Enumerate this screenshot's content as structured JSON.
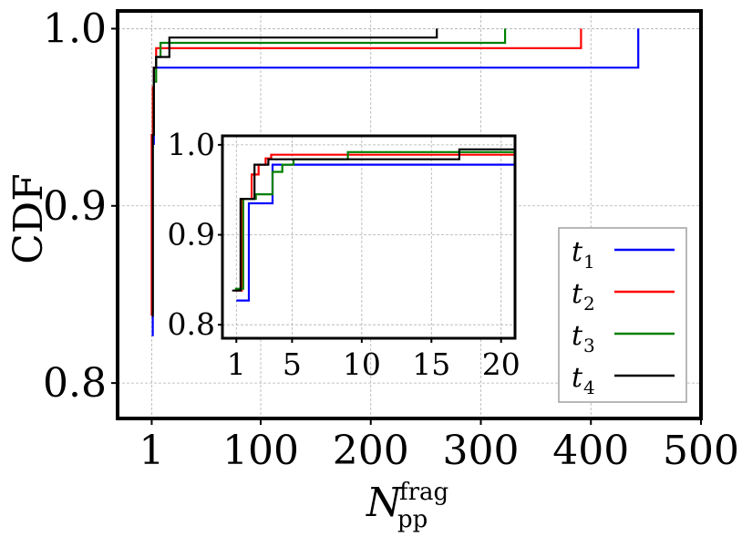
{
  "chart_data": [
    {
      "type": "line",
      "role": "main",
      "xlabel_main": "N",
      "xlabel_sub": "pp",
      "xlabel_sup": "frag",
      "ylabel": "CDF",
      "xlim": [
        -30,
        500
      ],
      "ylim": [
        0.78,
        1.01
      ],
      "x_ticks": [
        1,
        100,
        200,
        300,
        400,
        500
      ],
      "x_tick_labels": [
        "1",
        "100",
        "200",
        "300",
        "400",
        "500"
      ],
      "y_ticks": [
        0.8,
        0.9,
        1.0
      ],
      "y_tick_labels": [
        "0.8",
        "0.9",
        "1.0"
      ],
      "grid": true,
      "legend_position": "bottom-right",
      "series": [
        {
          "name": "t",
          "sub": "1",
          "color": "#0000ff",
          "points": [
            [
              1,
              0.827
            ],
            [
              2,
              0.827
            ],
            [
              2,
              0.935
            ],
            [
              3,
              0.935
            ],
            [
              3,
              0.978
            ],
            [
              443,
              0.978
            ],
            [
              443,
              1.0
            ]
          ]
        },
        {
          "name": "t",
          "sub": "2",
          "color": "#ff0000",
          "points": [
            [
              1,
              0.838
            ],
            [
              1,
              0.838
            ],
            [
              1,
              0.94
            ],
            [
              2,
              0.94
            ],
            [
              2,
              0.967
            ],
            [
              3,
              0.967
            ],
            [
              3,
              0.978
            ],
            [
              5,
              0.978
            ],
            [
              5,
              0.989
            ],
            [
              391,
              0.989
            ],
            [
              391,
              1.0
            ]
          ]
        },
        {
          "name": "t",
          "sub": "3",
          "color": "#008000",
          "points": [
            [
              1,
              0.84
            ],
            [
              2,
              0.84
            ],
            [
              2,
              0.94
            ],
            [
              3,
              0.94
            ],
            [
              3,
              0.97
            ],
            [
              5,
              0.97
            ],
            [
              5,
              0.984
            ],
            [
              9,
              0.984
            ],
            [
              9,
              0.992
            ],
            [
              322,
              0.992
            ],
            [
              322,
              1.0
            ]
          ]
        },
        {
          "name": "t",
          "sub": "4",
          "color": "#000000",
          "points": [
            [
              1,
              0.838
            ],
            [
              2,
              0.838
            ],
            [
              2,
              0.94
            ],
            [
              3,
              0.94
            ],
            [
              3,
              0.978
            ],
            [
              5,
              0.978
            ],
            [
              5,
              0.984
            ],
            [
              17,
              0.984
            ],
            [
              17,
              0.995
            ],
            [
              260,
              0.995
            ],
            [
              260,
              1.0
            ]
          ]
        }
      ]
    },
    {
      "type": "line",
      "role": "inset",
      "xlim": [
        0,
        21
      ],
      "ylim": [
        0.785,
        1.01
      ],
      "x_ticks": [
        1,
        5,
        10,
        15,
        20
      ],
      "x_tick_labels": [
        "1",
        "5",
        "10",
        "15",
        "20"
      ],
      "y_ticks": [
        0.8,
        0.9,
        1.0
      ],
      "y_tick_labels": [
        "0.8",
        "0.9",
        "1.0"
      ],
      "grid": true,
      "series": [
        {
          "name": "t",
          "sub": "1",
          "color": "#0000ff",
          "points": [
            [
              1,
              0.827
            ],
            [
              1.9,
              0.827
            ],
            [
              1.9,
              0.935
            ],
            [
              2.9,
              0.935
            ],
            [
              2.9,
              0.935
            ],
            [
              3.6,
              0.935
            ],
            [
              3.6,
              0.978
            ],
            [
              21,
              0.978
            ]
          ]
        },
        {
          "name": "t",
          "sub": "2",
          "color": "#ff0000",
          "points": [
            [
              0.9,
              0.838
            ],
            [
              1.4,
              0.838
            ],
            [
              1.4,
              0.94
            ],
            [
              2.1,
              0.94
            ],
            [
              2.1,
              0.967
            ],
            [
              2.6,
              0.967
            ],
            [
              2.6,
              0.978
            ],
            [
              3.1,
              0.978
            ],
            [
              3.1,
              0.985
            ],
            [
              3.5,
              0.985
            ],
            [
              3.5,
              0.989
            ],
            [
              21,
              0.989
            ]
          ]
        },
        {
          "name": "t",
          "sub": "3",
          "color": "#008000",
          "points": [
            [
              0.9,
              0.84
            ],
            [
              1.5,
              0.84
            ],
            [
              1.5,
              0.94
            ],
            [
              2.4,
              0.94
            ],
            [
              2.4,
              0.945
            ],
            [
              3.6,
              0.945
            ],
            [
              3.6,
              0.97
            ],
            [
              4.3,
              0.97
            ],
            [
              4.3,
              0.978
            ],
            [
              5.1,
              0.978
            ],
            [
              5.1,
              0.984
            ],
            [
              9,
              0.984
            ],
            [
              9,
              0.992
            ],
            [
              21,
              0.992
            ]
          ]
        },
        {
          "name": "t",
          "sub": "4",
          "color": "#000000",
          "points": [
            [
              0.7,
              0.838
            ],
            [
              1.3,
              0.838
            ],
            [
              1.3,
              0.94
            ],
            [
              2.3,
              0.94
            ],
            [
              2.3,
              0.978
            ],
            [
              3.3,
              0.978
            ],
            [
              3.3,
              0.984
            ],
            [
              17,
              0.984
            ],
            [
              17,
              0.995
            ],
            [
              21,
              0.995
            ]
          ]
        }
      ]
    }
  ]
}
